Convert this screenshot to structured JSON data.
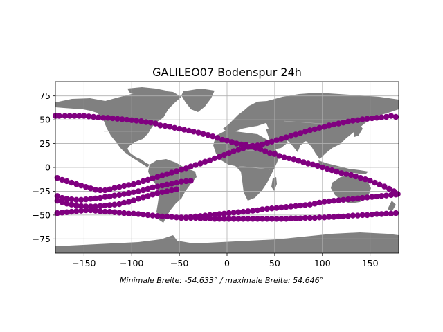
{
  "chart_data": {
    "type": "scatter",
    "title": "GALILEO07 Bodenspur 24h",
    "caption": "Minimale Breite: -54.633° / maximale Breite: 54.646°",
    "xlim": [
      -180,
      180
    ],
    "ylim": [
      -90,
      90
    ],
    "xticks": [
      -150,
      -100,
      -50,
      0,
      50,
      100,
      150
    ],
    "yticks": [
      -75,
      -50,
      -25,
      0,
      25,
      50,
      75
    ],
    "xtick_labels": [
      "−150",
      "−100",
      "−50",
      "0",
      "50",
      "100",
      "150"
    ],
    "ytick_labels": [
      "−75",
      "−50",
      "−25",
      "0",
      "25",
      "50",
      "75"
    ],
    "grid": true,
    "colors": {
      "points": "#800080",
      "land": "#808080",
      "grid": "#b0b0b0",
      "borders": "#b4b4b4"
    },
    "series": [
      {
        "points": [
          [
            -180,
            54
          ],
          [
            -176,
            54
          ],
          [
            -170,
            54
          ],
          [
            -165,
            54
          ],
          [
            -160,
            54
          ],
          [
            -155,
            54
          ],
          [
            -150,
            54
          ],
          [
            -145,
            53.5
          ],
          [
            -140,
            53
          ],
          [
            -135,
            52.5
          ],
          [
            -130,
            52
          ],
          [
            -125,
            52
          ],
          [
            -120,
            51.5
          ],
          [
            -115,
            51
          ],
          [
            -110,
            50.5
          ],
          [
            -105,
            50
          ],
          [
            -100,
            49.5
          ],
          [
            -95,
            49
          ],
          [
            -90,
            48.5
          ],
          [
            -85,
            47.5
          ],
          [
            -80,
            47
          ],
          [
            -75,
            46
          ],
          [
            -70,
            44
          ],
          [
            -65,
            43.5
          ],
          [
            -60,
            42.5
          ],
          [
            -55,
            41.5
          ],
          [
            -50,
            40.5
          ],
          [
            -45,
            39.5
          ],
          [
            -40,
            38.5
          ],
          [
            -35,
            37.5
          ],
          [
            -30,
            36.5
          ],
          [
            -25,
            35
          ],
          [
            -20,
            34
          ],
          [
            -15,
            32.5
          ],
          [
            -10,
            31
          ],
          [
            -5,
            29
          ],
          [
            0,
            28
          ],
          [
            5,
            26.5
          ],
          [
            10,
            25
          ],
          [
            15,
            24
          ],
          [
            20,
            23.5
          ],
          [
            25,
            22
          ],
          [
            30,
            20.5
          ],
          [
            35,
            19
          ],
          [
            40,
            17
          ],
          [
            45,
            15
          ],
          [
            50,
            14
          ],
          [
            55,
            12
          ],
          [
            60,
            10.5
          ],
          [
            65,
            9.5
          ],
          [
            70,
            8.5
          ],
          [
            75,
            7
          ],
          [
            80,
            5.5
          ],
          [
            85,
            4
          ],
          [
            90,
            3
          ],
          [
            95,
            1.5
          ],
          [
            100,
            0
          ],
          [
            105,
            -1.5
          ],
          [
            110,
            -3
          ],
          [
            115,
            -4.5
          ],
          [
            120,
            -6
          ],
          [
            125,
            -7
          ],
          [
            130,
            -8
          ],
          [
            135,
            -9.5
          ],
          [
            140,
            -11
          ],
          [
            145,
            -12.5
          ],
          [
            150,
            -14
          ],
          [
            155,
            -16
          ],
          [
            160,
            -18
          ],
          [
            165,
            -20
          ],
          [
            170,
            -22.5
          ],
          [
            175,
            -25
          ],
          [
            179,
            -28
          ]
        ]
      },
      {
        "points": [
          [
            -178,
            -11
          ],
          [
            -173,
            -13
          ],
          [
            -168,
            -14.5
          ],
          [
            -163,
            -16
          ],
          [
            -158,
            -17.5
          ],
          [
            -153,
            -19
          ],
          [
            -148,
            -20.5
          ],
          [
            -143,
            -22
          ],
          [
            -138,
            -23.5
          ],
          [
            -133,
            -24
          ],
          [
            -128,
            -24
          ],
          [
            -123,
            -23
          ],
          [
            -118,
            -21.5
          ],
          [
            -113,
            -20.5
          ],
          [
            -108,
            -19.5
          ],
          [
            -103,
            -18.5
          ],
          [
            -98,
            -17.5
          ],
          [
            -93,
            -16
          ],
          [
            -88,
            -14.5
          ],
          [
            -83,
            -13
          ],
          [
            -78,
            -11.5
          ],
          [
            -73,
            -10
          ],
          [
            -68,
            -8.5
          ],
          [
            -63,
            -7
          ],
          [
            -58,
            -5.5
          ],
          [
            -53,
            -4
          ],
          [
            -48,
            -2.5
          ],
          [
            -43,
            -1
          ],
          [
            -38,
            1
          ],
          [
            -33,
            2.5
          ],
          [
            -28,
            4
          ],
          [
            -23,
            6
          ],
          [
            -18,
            7.5
          ],
          [
            -13,
            9.5
          ],
          [
            -8,
            11
          ],
          [
            -3,
            13
          ],
          [
            2,
            15
          ],
          [
            7,
            17
          ],
          [
            12,
            18.5
          ],
          [
            17,
            20
          ],
          [
            22,
            21.5
          ],
          [
            27,
            22.5
          ],
          [
            32,
            23
          ],
          [
            37,
            24
          ],
          [
            42,
            25.5
          ],
          [
            47,
            27
          ],
          [
            52,
            28.5
          ],
          [
            57,
            30
          ],
          [
            62,
            31.5
          ],
          [
            67,
            33
          ],
          [
            72,
            34.5
          ],
          [
            77,
            36
          ],
          [
            82,
            37.5
          ],
          [
            87,
            39
          ],
          [
            92,
            40
          ],
          [
            97,
            41.5
          ],
          [
            102,
            42.5
          ],
          [
            107,
            44
          ],
          [
            112,
            45
          ],
          [
            117,
            46
          ],
          [
            122,
            47
          ],
          [
            127,
            48
          ],
          [
            132,
            49
          ],
          [
            137,
            49.5
          ],
          [
            142,
            50.5
          ],
          [
            147,
            51
          ],
          [
            152,
            51.5
          ],
          [
            157,
            52
          ],
          [
            162,
            52.5
          ],
          [
            167,
            53
          ],
          [
            172,
            54
          ],
          [
            177,
            53
          ]
        ]
      },
      {
        "points": [
          [
            -178,
            -30
          ],
          [
            -173,
            -32
          ],
          [
            -168,
            -33
          ],
          [
            -163,
            -33.5
          ],
          [
            -158,
            -34
          ],
          [
            -153,
            -34
          ],
          [
            -148,
            -33.5
          ],
          [
            -143,
            -33
          ],
          [
            -138,
            -32.5
          ],
          [
            -133,
            -32
          ],
          [
            -128,
            -31
          ],
          [
            -123,
            -30.5
          ],
          [
            -118,
            -29.5
          ],
          [
            -113,
            -29
          ],
          [
            -108,
            -28
          ],
          [
            -103,
            -27
          ],
          [
            -98,
            -26
          ],
          [
            -93,
            -25
          ],
          [
            -88,
            -24
          ],
          [
            -83,
            -22.5
          ],
          [
            -78,
            -21
          ],
          [
            -73,
            -20
          ],
          [
            -68,
            -19
          ],
          [
            -63,
            -18
          ],
          [
            -58,
            -17
          ],
          [
            -53,
            -16
          ],
          [
            -48,
            -15
          ],
          [
            -43,
            -14.5
          ],
          [
            -38,
            -14
          ]
        ]
      },
      {
        "points": [
          [
            -178,
            -35
          ],
          [
            -173,
            -36.5
          ],
          [
            -168,
            -38
          ],
          [
            -163,
            -39
          ],
          [
            -158,
            -40
          ],
          [
            -153,
            -40.5
          ],
          [
            -148,
            -41
          ],
          [
            -143,
            -41
          ],
          [
            -138,
            -41
          ],
          [
            -133,
            -40.5
          ],
          [
            -128,
            -40
          ],
          [
            -123,
            -39.5
          ],
          [
            -118,
            -39
          ],
          [
            -113,
            -38.5
          ],
          [
            -108,
            -37
          ],
          [
            -103,
            -36
          ],
          [
            -98,
            -34.5
          ],
          [
            -93,
            -33
          ],
          [
            -88,
            -31.5
          ],
          [
            -83,
            -30
          ],
          [
            -78,
            -28.5
          ],
          [
            -73,
            -27
          ],
          [
            -68,
            -26
          ],
          [
            -63,
            -25
          ],
          [
            -58,
            -24
          ],
          [
            -53,
            -23
          ]
        ]
      },
      {
        "points": [
          [
            -178,
            -48
          ],
          [
            -173,
            -47.5
          ],
          [
            -168,
            -47
          ],
          [
            -163,
            -46.5
          ],
          [
            -158,
            -46
          ],
          [
            -153,
            -45.5
          ],
          [
            -148,
            -45
          ],
          [
            -143,
            -45
          ],
          [
            -138,
            -45.5
          ],
          [
            -133,
            -46
          ],
          [
            -128,
            -46.5
          ],
          [
            -123,
            -46.5
          ],
          [
            -118,
            -47
          ],
          [
            -113,
            -47.5
          ],
          [
            -108,
            -48
          ],
          [
            -103,
            -48.5
          ],
          [
            -98,
            -48.5
          ],
          [
            -93,
            -49
          ],
          [
            -88,
            -49.5
          ],
          [
            -83,
            -50
          ],
          [
            -78,
            -50.5
          ],
          [
            -73,
            -51
          ],
          [
            -68,
            -51.5
          ],
          [
            -63,
            -51.5
          ],
          [
            -58,
            -52
          ],
          [
            -53,
            -52.5
          ],
          [
            -48,
            -52.5
          ],
          [
            -43,
            -53
          ],
          [
            -38,
            -53
          ],
          [
            -33,
            -53
          ],
          [
            -28,
            -53.5
          ],
          [
            -23,
            -53.5
          ],
          [
            -18,
            -53.5
          ],
          [
            -13,
            -54
          ],
          [
            -8,
            -54
          ],
          [
            -3,
            -54
          ],
          [
            2,
            -54
          ],
          [
            7,
            -54
          ],
          [
            12,
            -54
          ],
          [
            17,
            -54
          ],
          [
            22,
            -54
          ],
          [
            27,
            -54
          ],
          [
            32,
            -54
          ],
          [
            37,
            -54
          ],
          [
            42,
            -54
          ],
          [
            47,
            -54
          ],
          [
            52,
            -54
          ],
          [
            57,
            -54
          ],
          [
            62,
            -54
          ],
          [
            67,
            -53.5
          ],
          [
            72,
            -53.5
          ],
          [
            77,
            -53.5
          ],
          [
            82,
            -53
          ],
          [
            87,
            -53
          ],
          [
            92,
            -53
          ],
          [
            97,
            -52.5
          ],
          [
            102,
            -52.5
          ],
          [
            107,
            -52
          ],
          [
            112,
            -52
          ],
          [
            117,
            -51.5
          ],
          [
            122,
            -51.5
          ],
          [
            127,
            -51
          ],
          [
            132,
            -50.5
          ],
          [
            137,
            -50.5
          ],
          [
            142,
            -50
          ],
          [
            147,
            -50
          ],
          [
            152,
            -49.5
          ],
          [
            157,
            -49
          ],
          [
            162,
            -49
          ],
          [
            167,
            -48.5
          ],
          [
            172,
            -48.5
          ],
          [
            177,
            -48
          ]
        ]
      },
      {
        "points": [
          [
            -48,
            -53
          ],
          [
            -43,
            -52.5
          ],
          [
            -38,
            -52
          ],
          [
            -33,
            -51.5
          ],
          [
            -28,
            -51
          ],
          [
            -23,
            -50.5
          ],
          [
            -18,
            -50
          ],
          [
            -13,
            -49.5
          ],
          [
            -8,
            -49
          ],
          [
            -3,
            -48.5
          ],
          [
            2,
            -48
          ],
          [
            7,
            -47.5
          ],
          [
            12,
            -47
          ],
          [
            17,
            -46.5
          ],
          [
            22,
            -46
          ],
          [
            27,
            -45.5
          ],
          [
            32,
            -45
          ],
          [
            37,
            -44
          ],
          [
            42,
            -43.5
          ],
          [
            47,
            -43
          ],
          [
            52,
            -42.5
          ],
          [
            57,
            -42
          ],
          [
            62,
            -41.5
          ],
          [
            67,
            -41
          ],
          [
            72,
            -40.5
          ],
          [
            77,
            -40
          ],
          [
            82,
            -39.5
          ],
          [
            87,
            -39
          ],
          [
            92,
            -38
          ],
          [
            97,
            -37
          ],
          [
            102,
            -36
          ],
          [
            107,
            -35.5
          ],
          [
            112,
            -35
          ],
          [
            117,
            -34.5
          ],
          [
            122,
            -34
          ],
          [
            127,
            -33.5
          ],
          [
            132,
            -33
          ],
          [
            137,
            -32.5
          ],
          [
            142,
            -32
          ],
          [
            147,
            -31.5
          ],
          [
            152,
            -31
          ],
          [
            157,
            -30.5
          ],
          [
            162,
            -30
          ],
          [
            167,
            -29.5
          ],
          [
            172,
            -29
          ],
          [
            177,
            -28.5
          ]
        ]
      }
    ]
  }
}
